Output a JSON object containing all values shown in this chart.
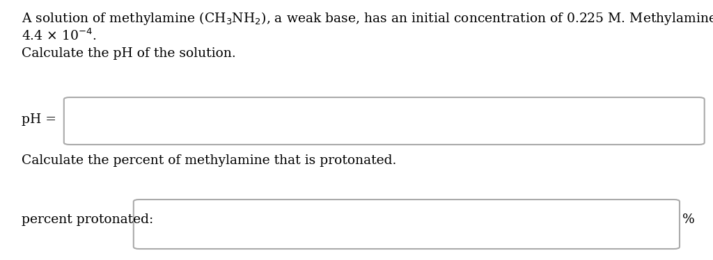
{
  "background_color": "#ffffff",
  "text_line1": "A solution of methylamine (CH$_3$NH$_2$), a weak base, has an initial concentration of 0.225 M. Methylamine has a $K_b$ of",
  "text_line2": "4.4 $\\times$ 10$^{-4}$.",
  "text_line3": "Calculate the pH of the solution.",
  "text_line4": "Calculate the percent of methylamine that is protonated.",
  "label_ph": "pH =",
  "label_pct": "percent protonated:",
  "suffix_pct": "%",
  "font_size": 13.5,
  "box_edge_color": "#aaaaaa",
  "box_face_color": "#ffffff",
  "text_color": "#000000"
}
